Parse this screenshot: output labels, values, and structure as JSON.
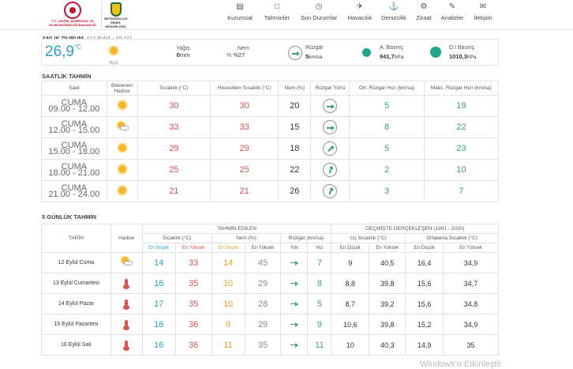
{
  "header": {
    "logo1_text": "T.C. ÇEVRE, ŞEHİRCİLİK VE İKLİM DEĞİŞİKLİĞİ BAKANLIĞI",
    "logo2_text": "METEOROLOJİ GENEL MÜDÜRLÜĞÜ",
    "nav": [
      {
        "label": "Kurumsal",
        "icon": "book-icon"
      },
      {
        "label": "Tahminler",
        "icon": "comment-icon"
      },
      {
        "label": "Son Durumlar",
        "icon": "clock-icon"
      },
      {
        "label": "Havacılık",
        "icon": "plane-icon"
      },
      {
        "label": "Denizcilik",
        "icon": "ship-icon"
      },
      {
        "label": "Ziraat",
        "icon": "tractor-icon"
      },
      {
        "label": "Analizler",
        "icon": "pen-icon"
      },
      {
        "label": "İletişim",
        "icon": "mail-icon"
      }
    ]
  },
  "now": {
    "title": "ANLIK DURUM",
    "date": "(12 Eylül - 10.11)",
    "temp": "26,9",
    "temp_unit": "°C",
    "condition": "Açık",
    "rain_label": "Yağış",
    "rain_value": "0",
    "rain_unit": "mm",
    "humidity_label": "Nem",
    "humidity_value": "%27",
    "wind_label": "Rüzgar",
    "wind_value": "5",
    "wind_unit": "km/sa",
    "pressure_label": "A. Basınç",
    "pressure_value": "941,7",
    "pressure_unit": "hPa",
    "sea_pressure_label": "D.İ Basınç",
    "sea_pressure_value": "1010,3",
    "sea_pressure_unit": "hPa"
  },
  "hourly": {
    "title": "SAATLİK TAHMİN",
    "headers": [
      "Saat",
      "Beklenen Hadise",
      "Sıcaklık (°C)",
      "Hissedilen Sıcaklık (°C)",
      "Nem (%)",
      "Rüzgar Yönü",
      "Ort. Rüzgar Hızı (km/sa)",
      "Maks. Rüzgar Hızı (km/sa)"
    ],
    "rows": [
      {
        "day": "CUMA",
        "time": "09.00 - 12.00",
        "icon": "sun-icon",
        "temp": "30",
        "feels": "30",
        "hum": "20",
        "avg": "5",
        "max": "19"
      },
      {
        "day": "CUMA",
        "time": "12.00 - 15.00",
        "icon": "partly-cloudy-icon",
        "temp": "33",
        "feels": "33",
        "hum": "15",
        "avg": "8",
        "max": "22"
      },
      {
        "day": "CUMA",
        "time": "15.00 - 18.00",
        "icon": "sun-icon",
        "temp": "29",
        "feels": "29",
        "hum": "18",
        "avg": "5",
        "max": "23"
      },
      {
        "day": "CUMA",
        "time": "18.00 - 21.00",
        "icon": "sun-icon",
        "temp": "25",
        "feels": "25",
        "hum": "22",
        "avg": "2",
        "max": "10"
      },
      {
        "day": "CUMA",
        "time": "21.00 - 24.00",
        "icon": "sun-icon",
        "temp": "21",
        "feels": "21",
        "hum": "26",
        "avg": "3",
        "max": "7"
      }
    ]
  },
  "daily": {
    "title": "5 GÜNLÜK TAHMİN",
    "group_forecast": "TAHMİN EDİLEN",
    "group_past": "GEÇMİŞTE GERÇEKLEŞEN (1991 - 2020)",
    "h_date": "TARİH",
    "h_event": "Hadise",
    "h_temp": "Sıcaklık (°C)",
    "h_hum": "Nem (%)",
    "h_wind": "Rüzgar (km/sa)",
    "h_extreme": "Uç Sıcaklık (°C)",
    "h_avg": "Ortalama Sıcaklık (°C)",
    "min_label": "En Düşük",
    "max_label": "En Yüksek",
    "dir_label": "Yön",
    "speed_label": "Hız",
    "rows": [
      {
        "date": "12 Eylül Cuma",
        "icon": "partly-cloudy-icon",
        "tmin": "14",
        "tmax": "33",
        "hmin": "14",
        "hmax": "45",
        "speed": "7",
        "emin": "9",
        "emax": "40,5",
        "amin": "16,4",
        "amax": "34,9"
      },
      {
        "date": "13 Eylül Cumartesi",
        "icon": "thermometer-icon",
        "tmin": "16",
        "tmax": "35",
        "hmin": "10",
        "hmax": "29",
        "speed": "8",
        "emin": "8,8",
        "emax": "39,8",
        "amin": "15,6",
        "amax": "34,7"
      },
      {
        "date": "14 Eylül Pazar",
        "icon": "thermometer-icon",
        "tmin": "17",
        "tmax": "35",
        "hmin": "10",
        "hmax": "28",
        "speed": "5",
        "emin": "8,7",
        "emax": "39,2",
        "amin": "15,6",
        "amax": "34,8"
      },
      {
        "date": "15 Eylül Pazartesi",
        "icon": "thermometer-icon",
        "tmin": "16",
        "tmax": "36",
        "hmin": "9",
        "hmax": "29",
        "speed": "9",
        "emin": "10,6",
        "emax": "39,8",
        "amin": "15,2",
        "amax": "34,9"
      },
      {
        "date": "16 Eylül Salı",
        "icon": "thermometer-icon",
        "tmin": "16",
        "tmax": "36",
        "hmin": "11",
        "hmax": "35",
        "speed": "11",
        "emin": "10",
        "emax": "40,3",
        "amin": "14,9",
        "amax": "35"
      }
    ]
  },
  "watermark": "Windows'u Etkinleştir"
}
